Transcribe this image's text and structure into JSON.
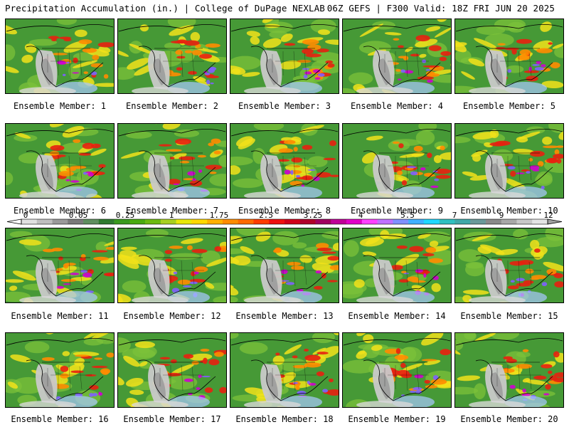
{
  "header": {
    "left_title": "Precipitation Accumulation (in.) | College of DuPage NEXLAB",
    "right_title": "06Z GEFS | F300 Valid: 18Z FRI JUN 20 2025"
  },
  "panels": [
    {
      "label": "Ensemble Member: 1"
    },
    {
      "label": "Ensemble Member: 2"
    },
    {
      "label": "Ensemble Member: 3"
    },
    {
      "label": "Ensemble Member: 4"
    },
    {
      "label": "Ensemble Member: 5"
    },
    {
      "label": "Ensemble Member: 6"
    },
    {
      "label": "Ensemble Member: 7"
    },
    {
      "label": "Ensemble Member: 8"
    },
    {
      "label": "Ensemble Member: 9"
    },
    {
      "label": "Ensemble Member: 10"
    },
    {
      "label": "Ensemble Member: 11"
    },
    {
      "label": "Ensemble Member: 12"
    },
    {
      "label": "Ensemble Member: 13"
    },
    {
      "label": "Ensemble Member: 14"
    },
    {
      "label": "Ensemble Member: 15"
    },
    {
      "label": "Ensemble Member: 16"
    },
    {
      "label": "Ensemble Member: 17"
    },
    {
      "label": "Ensemble Member: 18"
    },
    {
      "label": "Ensemble Member: 19"
    },
    {
      "label": "Ensemble Member: 20"
    }
  ],
  "colorbar": {
    "ticks": [
      "0",
      "0.05",
      "0.25",
      "1",
      "1.75",
      "2.5",
      "3.25",
      "4",
      "5.5",
      "7",
      "9",
      "12"
    ],
    "colors": [
      "#e0e0e0",
      "#bfbfbf",
      "#9a9a9a",
      "#7a7a7a",
      "#5f8f5f",
      "#2f7a2f",
      "#3a9a1e",
      "#4aaa10",
      "#6cba10",
      "#a8d020",
      "#e8e80a",
      "#ffd800",
      "#ffb000",
      "#ff8c00",
      "#ff6a00",
      "#ff3c00",
      "#ee1010",
      "#d0001a",
      "#b0002a",
      "#a00060",
      "#c00098",
      "#e000c8",
      "#ff40ff",
      "#c070ff",
      "#8090ff",
      "#40b0ff",
      "#20d8ff",
      "#30c0c0",
      "#40a8a8",
      "#6a9a9a",
      "#8a8a8a",
      "#a8a8a8",
      "#c8c8c8",
      "#e4e4e4"
    ]
  }
}
